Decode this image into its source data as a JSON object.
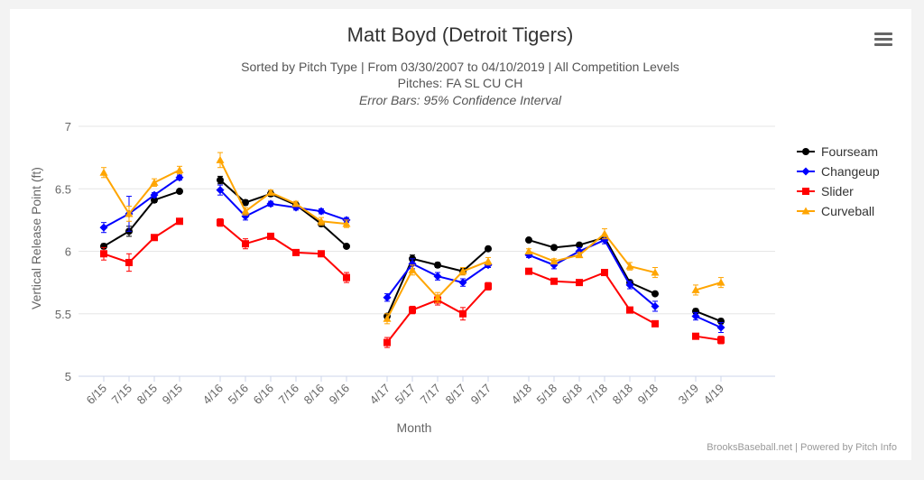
{
  "chart_data": {
    "type": "line",
    "title": "Matt Boyd (Detroit Tigers)",
    "subtitle_lines": [
      "Sorted by Pitch Type | From 03/30/2007 to 04/10/2019 | All Competition Levels",
      "Pitches: FA SL CU CH",
      "Error Bars: 95% Confidence Interval"
    ],
    "xlabel": "Month",
    "ylabel": "Vertical Release Point (ft)",
    "ylim": [
      5,
      7
    ],
    "yticks": [
      5,
      5.5,
      6,
      6.5,
      7
    ],
    "ytick_labels": [
      "5",
      "5.5",
      "6",
      "6.5",
      "7"
    ],
    "categories": [
      "6/15",
      "7/15",
      "8/15",
      "9/15",
      "4/16",
      "5/16",
      "6/16",
      "7/16",
      "8/16",
      "9/16",
      "4/17",
      "5/17",
      "7/17",
      "8/17",
      "9/17",
      "4/18",
      "5/18",
      "6/18",
      "7/18",
      "8/18",
      "9/18",
      "3/19",
      "4/19"
    ],
    "groups": [
      [
        0,
        1,
        2,
        3
      ],
      [
        4,
        5,
        6,
        7,
        8,
        9
      ],
      [
        10,
        11,
        12,
        13,
        14
      ],
      [
        15,
        16,
        17,
        18,
        19,
        20
      ],
      [
        21,
        22
      ]
    ],
    "series": [
      {
        "name": "Fourseam",
        "color": "#000000",
        "marker": "circle",
        "values": [
          6.04,
          6.16,
          6.41,
          6.48,
          6.57,
          6.39,
          6.46,
          6.37,
          6.22,
          6.04,
          5.48,
          5.94,
          5.89,
          5.84,
          6.02,
          6.09,
          6.03,
          6.05,
          6.11,
          5.75,
          5.66,
          5.52,
          5.44
        ],
        "errors": [
          0.02,
          0.04,
          0.02,
          0.01,
          0.03,
          0.02,
          0.02,
          0.01,
          0.02,
          0.01,
          0.02,
          0.03,
          0.02,
          0.02,
          0.01,
          0.01,
          0.01,
          0.01,
          0.02,
          0.02,
          0.01,
          0.02,
          0.02
        ]
      },
      {
        "name": "Changeup",
        "color": "#0000ff",
        "marker": "diamond",
        "values": [
          6.19,
          6.3,
          6.45,
          6.59,
          6.49,
          6.28,
          6.38,
          6.35,
          6.32,
          6.25,
          5.63,
          5.9,
          5.8,
          5.75,
          5.89,
          5.97,
          5.89,
          6.0,
          6.09,
          5.73,
          5.56,
          5.48,
          5.39
        ],
        "errors": [
          0.04,
          0.14,
          0.02,
          0.02,
          0.04,
          0.03,
          0.02,
          0.02,
          0.02,
          0.02,
          0.03,
          0.04,
          0.03,
          0.03,
          0.02,
          0.02,
          0.03,
          0.03,
          0.03,
          0.03,
          0.04,
          0.03,
          0.04
        ]
      },
      {
        "name": "Slider",
        "color": "#ff0000",
        "marker": "square",
        "values": [
          5.98,
          5.91,
          6.11,
          6.24,
          6.23,
          6.06,
          6.12,
          5.99,
          5.98,
          5.79,
          5.27,
          5.53,
          5.61,
          5.5,
          5.72,
          5.84,
          5.76,
          5.75,
          5.83,
          5.53,
          5.42,
          5.32,
          5.29
        ],
        "errors": [
          0.05,
          0.07,
          0.02,
          0.02,
          0.03,
          0.04,
          0.02,
          0.02,
          0.02,
          0.04,
          0.04,
          0.03,
          0.04,
          0.05,
          0.03,
          0.02,
          0.02,
          0.02,
          0.02,
          0.02,
          0.02,
          0.02,
          0.03
        ]
      },
      {
        "name": "Curveball",
        "color": "#ffa500",
        "marker": "triangle",
        "values": [
          6.63,
          6.3,
          6.55,
          6.65,
          6.73,
          6.32,
          6.47,
          6.38,
          6.24,
          6.22,
          5.46,
          5.85,
          5.63,
          5.84,
          5.92,
          6.0,
          5.92,
          5.97,
          6.14,
          5.88,
          5.83,
          5.69,
          5.75
        ],
        "errors": [
          0.04,
          0.06,
          0.03,
          0.03,
          0.06,
          0.03,
          0.02,
          0.02,
          0.03,
          0.03,
          0.04,
          0.04,
          0.04,
          0.03,
          0.03,
          0.02,
          0.02,
          0.02,
          0.04,
          0.03,
          0.04,
          0.04,
          0.04
        ]
      }
    ],
    "legend_position": "top-right",
    "grid": true
  },
  "menu": {
    "icon": "hamburger-menu-icon"
  },
  "credits": "BrooksBaseball.net | Powered by Pitch Info"
}
